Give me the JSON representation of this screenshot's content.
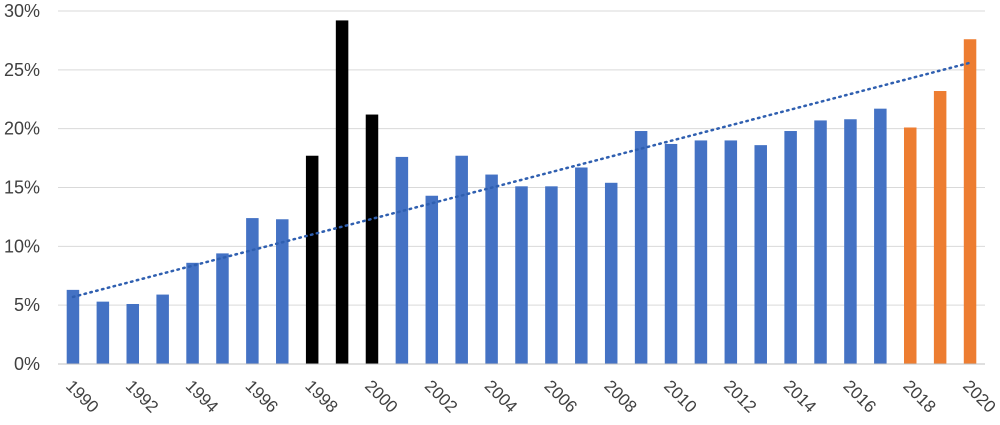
{
  "chart_data": {
    "type": "bar",
    "title": "",
    "xlabel": "",
    "ylabel": "",
    "ylim": [
      0,
      30
    ],
    "ytick_labels": [
      "0%",
      "5%",
      "10%",
      "15%",
      "20%",
      "25%",
      "30%"
    ],
    "ytick_values": [
      0,
      5,
      10,
      15,
      20,
      25,
      30
    ],
    "xtick_labels": [
      "1990",
      "1992",
      "1994",
      "1996",
      "1998",
      "2000",
      "2002",
      "2004",
      "2006",
      "2008",
      "2010",
      "2012",
      "2014",
      "2016",
      "2018",
      "2020"
    ],
    "grid": true,
    "legend": "none",
    "categories": [
      1990,
      1991,
      1992,
      1993,
      1994,
      1995,
      1996,
      1997,
      1998,
      1999,
      2000,
      2001,
      2002,
      2003,
      2004,
      2005,
      2006,
      2007,
      2008,
      2009,
      2010,
      2011,
      2012,
      2013,
      2014,
      2015,
      2016,
      2017,
      2018,
      2019,
      2020
    ],
    "values": [
      6.3,
      5.3,
      5.1,
      5.9,
      8.6,
      9.4,
      12.4,
      12.3,
      17.7,
      29.2,
      21.2,
      17.6,
      14.3,
      17.7,
      16.1,
      15.1,
      15.1,
      16.7,
      15.4,
      19.8,
      18.7,
      19.0,
      19.0,
      18.6,
      19.8,
      20.7,
      20.8,
      21.7,
      20.1,
      23.2,
      27.6
    ],
    "bar_groups": [
      "blue",
      "blue",
      "blue",
      "blue",
      "blue",
      "blue",
      "blue",
      "blue",
      "black",
      "black",
      "black",
      "blue",
      "blue",
      "blue",
      "blue",
      "blue",
      "blue",
      "blue",
      "blue",
      "blue",
      "blue",
      "blue",
      "blue",
      "blue",
      "blue",
      "blue",
      "blue",
      "blue",
      "orange",
      "orange",
      "orange"
    ],
    "colors": {
      "blue": "#4472c4",
      "black": "#000000",
      "orange": "#ed7d31",
      "trend": "#2f5fb0"
    },
    "trendline": {
      "type": "linear",
      "start": [
        1990,
        5.7
      ],
      "end": [
        2020,
        25.6
      ]
    }
  }
}
